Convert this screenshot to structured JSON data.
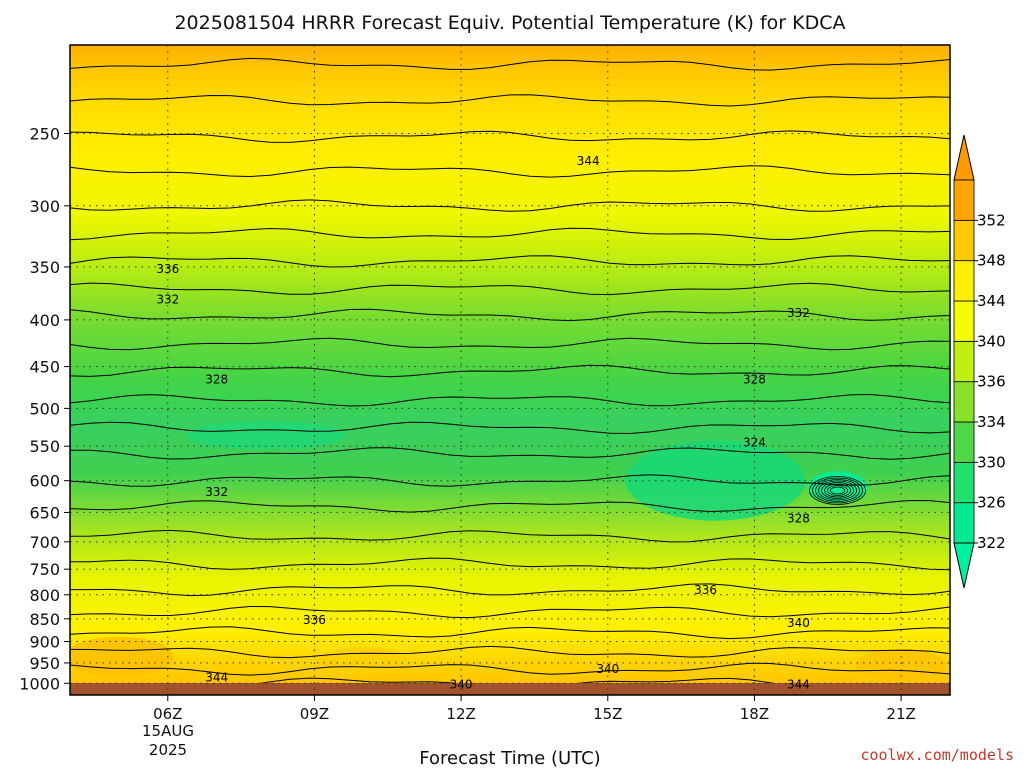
{
  "chart_data": {
    "type": "heatmap",
    "title": "2025081504 HRRR Forecast Equiv. Potential Temperature (K) for KDCA",
    "xlabel": "Forecast Time (UTC)",
    "ylabel": "",
    "x_ticks": [
      "06Z",
      "09Z",
      "12Z",
      "15Z",
      "18Z",
      "21Z"
    ],
    "x_date_line1": "15AUG",
    "x_date_line2": "2025",
    "x_range_hours": [
      4,
      22
    ],
    "y_axis": "pressure (hPa), inverted, log scale",
    "y_ticks": [
      250,
      300,
      350,
      400,
      450,
      500,
      550,
      600,
      650,
      700,
      750,
      800,
      850,
      900,
      950,
      1000
    ],
    "y_range": [
      200,
      1030
    ],
    "grid": true,
    "colorbar": {
      "levels": [
        322,
        326,
        330,
        334,
        336,
        340,
        344,
        348,
        352
      ],
      "colors": [
        "#00e890",
        "#20e070",
        "#50d848",
        "#88e028",
        "#c0f010",
        "#f4fc00",
        "#fff000",
        "#ffc800",
        "#ffa400"
      ],
      "under_color": "#00f0a0",
      "over_color": "#ff9a00"
    },
    "contour_labels": [
      {
        "text": "344",
        "time": 14.6,
        "p": 268
      },
      {
        "text": "336",
        "time": 6.0,
        "p": 352
      },
      {
        "text": "332",
        "time": 6.0,
        "p": 380
      },
      {
        "text": "332",
        "time": 18.9,
        "p": 393
      },
      {
        "text": "328",
        "time": 7.0,
        "p": 465
      },
      {
        "text": "328",
        "time": 18.0,
        "p": 465
      },
      {
        "text": "324",
        "time": 18.0,
        "p": 545
      },
      {
        "text": "332",
        "time": 7.0,
        "p": 617
      },
      {
        "text": "328",
        "time": 18.9,
        "p": 660
      },
      {
        "text": "336",
        "time": 17.0,
        "p": 790
      },
      {
        "text": "336",
        "time": 9.0,
        "p": 852
      },
      {
        "text": "340",
        "time": 18.9,
        "p": 859
      },
      {
        "text": "340",
        "time": 15.0,
        "p": 965
      },
      {
        "text": "344",
        "time": 7.0,
        "p": 985
      },
      {
        "text": "340",
        "time": 12.0,
        "p": 1003
      },
      {
        "text": "344",
        "time": 18.9,
        "p": 1003
      }
    ],
    "surface_color": "#a0522d"
  },
  "credit": "coolwx.com/models"
}
